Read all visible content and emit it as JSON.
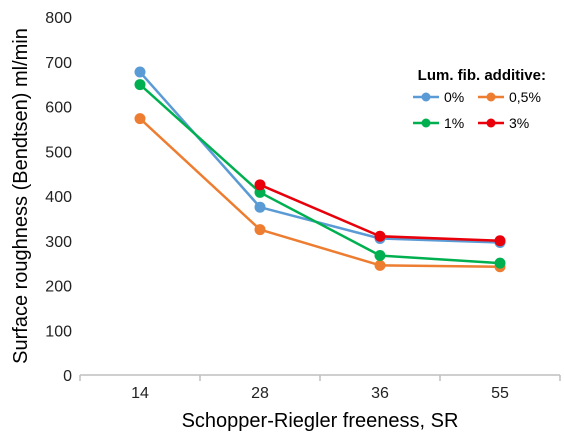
{
  "chart_data": {
    "type": "line",
    "title": "",
    "xlabel": "Schopper-Riegler freeness, SR",
    "ylabel": "Surface roughness (Bendtsen) ml/min",
    "categories": [
      "14",
      "28",
      "36",
      "55"
    ],
    "ylim": [
      0,
      800
    ],
    "yticks": [
      "0",
      "100",
      "200",
      "300",
      "400",
      "500",
      "600",
      "700",
      "800"
    ],
    "grid": false,
    "legend": {
      "title": "Lum. fib. additive:",
      "placement": "top-right"
    },
    "series": [
      {
        "name": "0%",
        "color": "#5b9bd5",
        "values": [
          677,
          375,
          305,
          296
        ]
      },
      {
        "name": "0,5%",
        "color": "#ed7d31",
        "values": [
          573,
          325,
          245,
          242
        ]
      },
      {
        "name": "1%",
        "color": "#00b050",
        "values": [
          649,
          408,
          267,
          250
        ]
      },
      {
        "name": "3%",
        "color": "#e8000b",
        "values": [
          null,
          425,
          310,
          300
        ]
      }
    ]
  }
}
